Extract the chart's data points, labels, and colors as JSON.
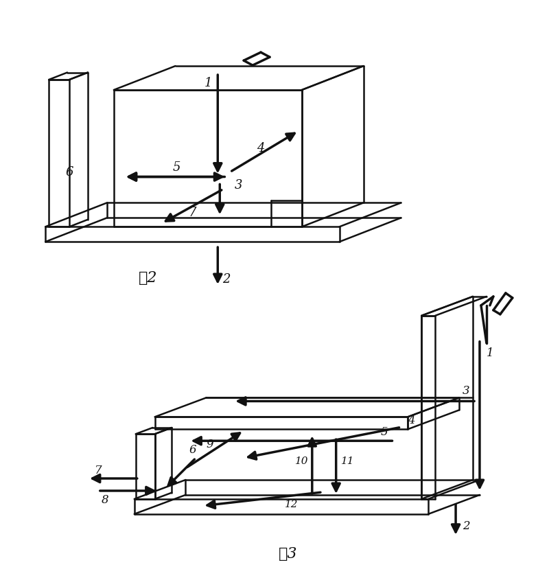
{
  "fig_width": 8.0,
  "fig_height": 8.26,
  "bg_color": "#ffffff",
  "line_color": "#111111",
  "label1": "图2",
  "label2": "图3"
}
